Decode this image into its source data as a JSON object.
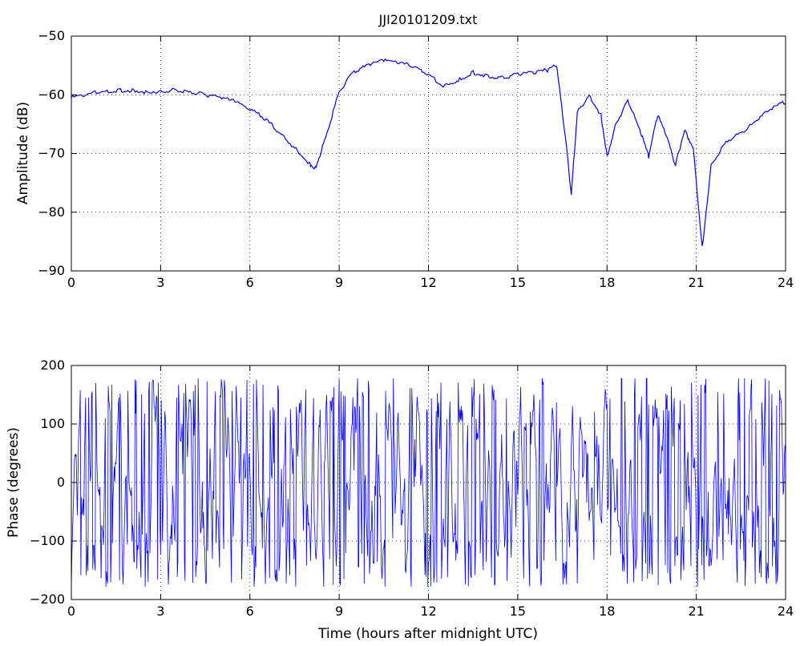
{
  "figure": {
    "title": "JJI20101209.txt"
  },
  "chart_data": [
    {
      "type": "line",
      "title": "JJI20101209.txt",
      "xlabel": "",
      "ylabel": "Amplitude (dB)",
      "xlim": [
        0,
        24
      ],
      "ylim": [
        -90,
        -50
      ],
      "xticks": [
        0,
        3,
        6,
        9,
        12,
        15,
        18,
        21,
        24
      ],
      "yticks": [
        -90,
        -80,
        -70,
        -60,
        -50
      ],
      "grid": true,
      "color": "#0000ff",
      "x": [
        0,
        0.5,
        1,
        1.5,
        2,
        2.5,
        3,
        3.5,
        4,
        4.5,
        5,
        5.5,
        6,
        6.5,
        7,
        7.5,
        8,
        8.2,
        8.5,
        9,
        9.5,
        10,
        10.5,
        11,
        11.5,
        12,
        12.5,
        13,
        13.5,
        14,
        14.5,
        15,
        15.5,
        16,
        16.3,
        16.6,
        16.8,
        17,
        17.4,
        17.8,
        18,
        18.3,
        18.7,
        19.1,
        19.4,
        19.7,
        20,
        20.3,
        20.6,
        20.9,
        21.2,
        21.5,
        22,
        22.5,
        23,
        23.5,
        24
      ],
      "values": [
        -60.5,
        -60,
        -59.5,
        -59.3,
        -59.2,
        -59.5,
        -59.4,
        -59.2,
        -59.6,
        -60,
        -60.5,
        -61.2,
        -62.5,
        -64,
        -66.5,
        -69,
        -71.8,
        -72.5,
        -68,
        -59.5,
        -56,
        -55,
        -54.2,
        -54.5,
        -55.2,
        -56.5,
        -58.5,
        -57.5,
        -56.2,
        -56.8,
        -57.2,
        -56.5,
        -56.2,
        -55.8,
        -55,
        -67,
        -77,
        -63,
        -60,
        -63.5,
        -70.5,
        -65,
        -61,
        -66,
        -70.5,
        -63.5,
        -67,
        -72,
        -66,
        -69,
        -86,
        -72,
        -68,
        -66.5,
        -64.5,
        -62.5,
        -61.2
      ]
    },
    {
      "type": "line",
      "title": "",
      "xlabel": "Time (hours after midnight UTC)",
      "ylabel": "Phase (degrees)",
      "xlim": [
        0,
        24
      ],
      "ylim": [
        -200,
        200
      ],
      "xticks": [
        0,
        3,
        6,
        9,
        12,
        15,
        18,
        21,
        24
      ],
      "yticks": [
        -200,
        -100,
        0,
        100,
        200
      ],
      "grid": true,
      "color": "#0000ff",
      "phase_range": [
        -180,
        180
      ],
      "note_style": "wrapped-phase"
    }
  ]
}
